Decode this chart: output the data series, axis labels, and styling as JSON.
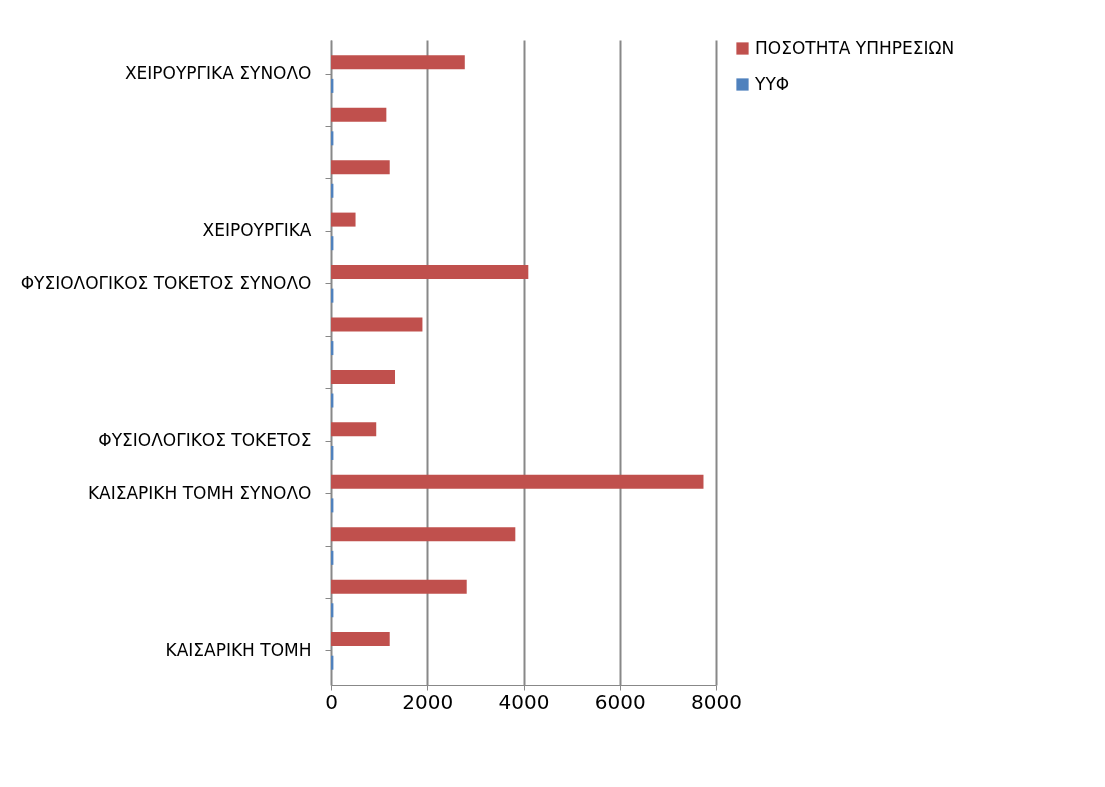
{
  "chart_data": {
    "type": "bar",
    "orientation": "horizontal",
    "categories": [
      "ΧΕΙΡΟΥΡΓΙΚΑ ΣΥΝΟΛΟ",
      null,
      null,
      "ΧΕΙΡΟΥΡΓΙΚΑ",
      "ΦΥΣΙΟΛΟΓΙΚΟΣ ΤΟΚΕΤΟΣ ΣΥΝΟΛΟ",
      null,
      null,
      "ΦΥΣΙΟΛΟΓΙΚΟΣ ΤΟΚΕΤΟΣ",
      "ΚΑΙΣΑΡΙΚΗ ΤΟΜΗ ΣΥΝΟΛΟ",
      null,
      null,
      "ΚΑΙΣΑΡΙΚΗ ΤΟΜΗ"
    ],
    "series": [
      {
        "name": "ΠΟΣΟΤΗΤΑ ΥΠΗΡΕΣΙΩΝ",
        "color": "#c0504d",
        "values": [
          2780,
          1150,
          1220,
          510,
          4100,
          1900,
          1330,
          940,
          7740,
          3830,
          2820,
          1220
        ]
      },
      {
        "name": "ΥΥΦ",
        "color": "#4f81bd",
        "values": [
          50,
          50,
          50,
          50,
          50,
          50,
          50,
          50,
          50,
          50,
          50,
          50
        ]
      }
    ],
    "xlim": [
      0,
      8000
    ],
    "xticks": [
      0,
      2000,
      4000,
      6000,
      8000
    ],
    "grid": "x",
    "legend": "right"
  }
}
